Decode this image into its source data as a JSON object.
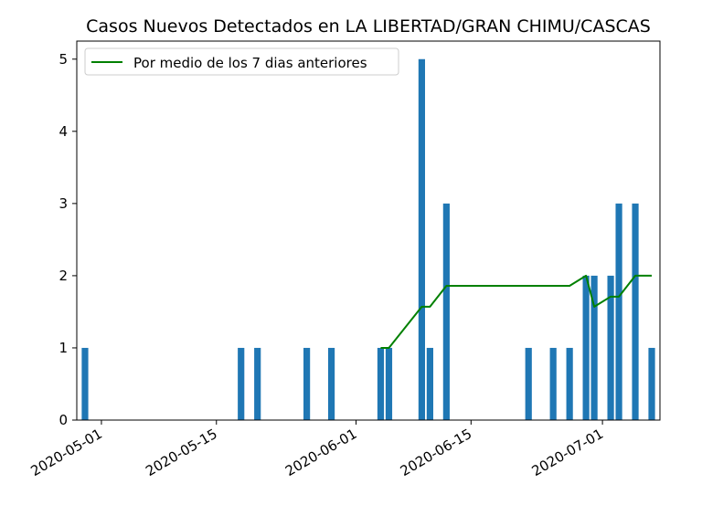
{
  "chart_data": {
    "type": "bar",
    "title": "Casos Nuevos Detectados en LA LIBERTAD/GRAN CHIMU/CASCAS",
    "xlabel": "",
    "ylabel": "",
    "x_range": [
      "2020-04-28",
      "2020-07-08"
    ],
    "ylim": [
      0,
      5.25
    ],
    "y_ticks": [
      0,
      1,
      2,
      3,
      4,
      5
    ],
    "x_ticks": [
      "2020-05-01",
      "2020-05-15",
      "2020-06-01",
      "2020-06-15",
      "2020-07-01"
    ],
    "grid": false,
    "legend_position": "upper-left",
    "series": [
      {
        "type": "bar",
        "color": "#1f77b4",
        "data": [
          {
            "date": "2020-04-29",
            "value": 1
          },
          {
            "date": "2020-05-18",
            "value": 1
          },
          {
            "date": "2020-05-20",
            "value": 1
          },
          {
            "date": "2020-05-26",
            "value": 1
          },
          {
            "date": "2020-05-29",
            "value": 1
          },
          {
            "date": "2020-06-04",
            "value": 1
          },
          {
            "date": "2020-06-05",
            "value": 1
          },
          {
            "date": "2020-06-09",
            "value": 5
          },
          {
            "date": "2020-06-10",
            "value": 1
          },
          {
            "date": "2020-06-12",
            "value": 3
          },
          {
            "date": "2020-06-22",
            "value": 1
          },
          {
            "date": "2020-06-25",
            "value": 1
          },
          {
            "date": "2020-06-27",
            "value": 1
          },
          {
            "date": "2020-06-29",
            "value": 2
          },
          {
            "date": "2020-06-30",
            "value": 2
          },
          {
            "date": "2020-07-02",
            "value": 2
          },
          {
            "date": "2020-07-03",
            "value": 3
          },
          {
            "date": "2020-07-05",
            "value": 3
          },
          {
            "date": "2020-07-07",
            "value": 1
          }
        ]
      },
      {
        "name": "Por medio de los 7 dias anteriores",
        "type": "line",
        "color": "#008000",
        "data": [
          {
            "date": "2020-06-04",
            "value": 1
          },
          {
            "date": "2020-06-05",
            "value": 1
          },
          {
            "date": "2020-06-09",
            "value": 1.57
          },
          {
            "date": "2020-06-10",
            "value": 1.57
          },
          {
            "date": "2020-06-12",
            "value": 1.86
          },
          {
            "date": "2020-06-27",
            "value": 1.86
          },
          {
            "date": "2020-06-29",
            "value": 2
          },
          {
            "date": "2020-06-30",
            "value": 1.57
          },
          {
            "date": "2020-07-02",
            "value": 1.71
          },
          {
            "date": "2020-07-03",
            "value": 1.71
          },
          {
            "date": "2020-07-05",
            "value": 2
          },
          {
            "date": "2020-07-07",
            "value": 2
          }
        ]
      }
    ]
  }
}
